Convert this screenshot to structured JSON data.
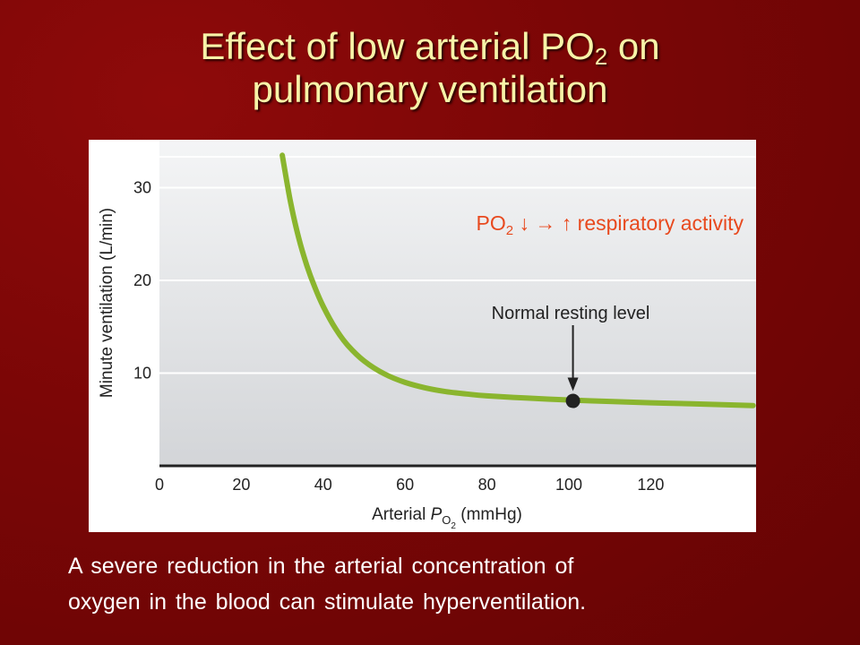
{
  "slide": {
    "title_part1": "Effect of low arterial PO",
    "title_sub": "2",
    "title_part2": " on",
    "title_line2": "pulmonary ventilation",
    "caption_line1": "A severe reduction in the arterial concentration of",
    "caption_line2": "oxygen in the blood can stimulate hyperventilation."
  },
  "chart_data": {
    "type": "line",
    "xlabel_pre": "Arterial ",
    "xlabel_var": "P",
    "xlabel_sub": "O",
    "xlabel_subsub": "2",
    "xlabel_post": " (mmHg)",
    "ylabel": "Minute ventilation (L/min)",
    "xlim": [
      0,
      145
    ],
    "ylim": [
      0,
      35
    ],
    "x_ticks": [
      0,
      20,
      40,
      60,
      80,
      100,
      120
    ],
    "y_ticks": [
      10,
      20,
      30
    ],
    "grid": true,
    "series": [
      {
        "color": "#8ab52e",
        "x": [
          30,
          32,
          34,
          36,
          38,
          40,
          43,
          46,
          50,
          55,
          60,
          65,
          70,
          75,
          80,
          90,
          100,
          110,
          120,
          130,
          145
        ],
        "y": [
          33.5,
          28.5,
          24.6,
          21.6,
          19.2,
          17.2,
          14.8,
          13,
          11.3,
          9.9,
          9.0,
          8.4,
          8.0,
          7.75,
          7.55,
          7.3,
          7.1,
          6.95,
          6.8,
          6.7,
          6.5
        ]
      }
    ],
    "marker": {
      "x": 101,
      "y": 7.0,
      "label": "Normal resting level"
    },
    "annotation": {
      "pre": "PO",
      "sub": "2",
      "arrows": "↓ → ↑",
      "post": " respiratory activity",
      "color": "#e8491e"
    }
  }
}
